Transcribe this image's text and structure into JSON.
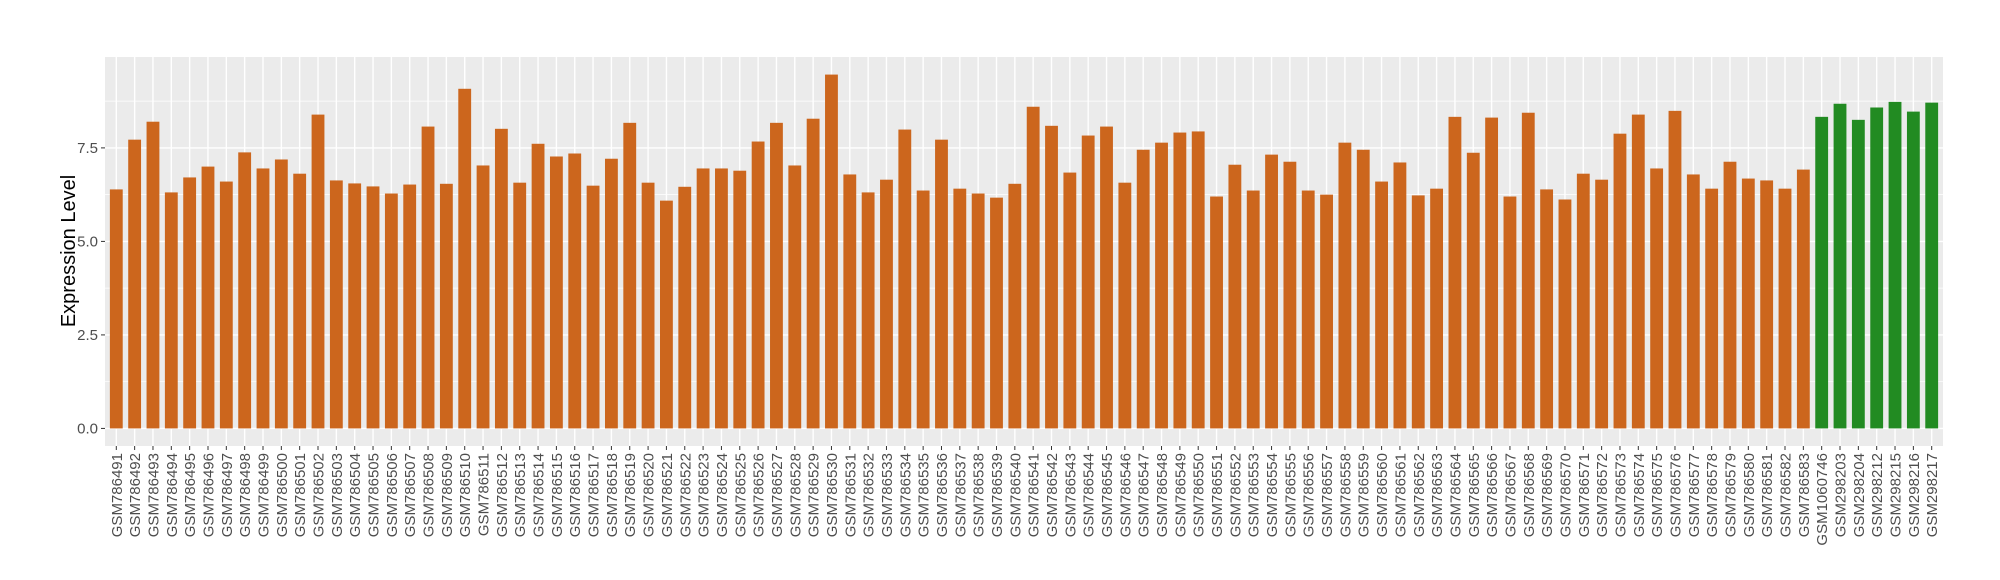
{
  "chart_data": {
    "type": "bar",
    "title": "",
    "xlabel": "",
    "ylabel": "Expression Level",
    "ylim": [
      -0.47,
      9.93
    ],
    "yticks": [
      "0.0",
      "2.5",
      "5.0",
      "7.5"
    ],
    "grid": true,
    "colors": {
      "group1": "#CC661D",
      "group2": "#228B22",
      "panel": "#EBEBEB",
      "grid": "#FFFFFF"
    },
    "categories": [
      "GSM786491",
      "GSM786492",
      "GSM786493",
      "GSM786494",
      "GSM786495",
      "GSM786496",
      "GSM786497",
      "GSM786498",
      "GSM786499",
      "GSM786500",
      "GSM786501",
      "GSM786502",
      "GSM786503",
      "GSM786504",
      "GSM786505",
      "GSM786506",
      "GSM786507",
      "GSM786508",
      "GSM786509",
      "GSM786510",
      "GSM786511",
      "GSM786512",
      "GSM786513",
      "GSM786514",
      "GSM786515",
      "GSM786516",
      "GSM786517",
      "GSM786518",
      "GSM786519",
      "GSM786520",
      "GSM786521",
      "GSM786522",
      "GSM786523",
      "GSM786524",
      "GSM786525",
      "GSM786526",
      "GSM786527",
      "GSM786528",
      "GSM786529",
      "GSM786530",
      "GSM786531",
      "GSM786532",
      "GSM786533",
      "GSM786534",
      "GSM786535",
      "GSM786536",
      "GSM786537",
      "GSM786538",
      "GSM786539",
      "GSM786540",
      "GSM786541",
      "GSM786542",
      "GSM786543",
      "GSM786544",
      "GSM786545",
      "GSM786546",
      "GSM786547",
      "GSM786548",
      "GSM786549",
      "GSM786550",
      "GSM786551",
      "GSM786552",
      "GSM786553",
      "GSM786554",
      "GSM786555",
      "GSM786556",
      "GSM786557",
      "GSM786558",
      "GSM786559",
      "GSM786560",
      "GSM786561",
      "GSM786562",
      "GSM786563",
      "GSM786564",
      "GSM786565",
      "GSM786566",
      "GSM786567",
      "GSM786568",
      "GSM786569",
      "GSM786570",
      "GSM786571",
      "GSM786572",
      "GSM786573",
      "GSM786574",
      "GSM786575",
      "GSM786576",
      "GSM786577",
      "GSM786578",
      "GSM786579",
      "GSM786580",
      "GSM786581",
      "GSM786582",
      "GSM786583",
      "GSM1060746",
      "GSM298203",
      "GSM298204",
      "GSM298212",
      "GSM298215",
      "GSM298216",
      "GSM298217"
    ],
    "values": [
      6.39,
      7.72,
      8.2,
      6.31,
      6.71,
      7.0,
      6.6,
      7.38,
      6.95,
      7.19,
      6.81,
      8.39,
      6.63,
      6.55,
      6.47,
      6.28,
      6.52,
      8.07,
      6.54,
      9.08,
      7.03,
      8.01,
      6.57,
      7.61,
      7.27,
      7.35,
      6.49,
      7.21,
      8.17,
      6.57,
      6.09,
      6.46,
      6.95,
      6.95,
      6.89,
      7.67,
      8.17,
      7.03,
      8.28,
      9.46,
      6.79,
      6.31,
      6.65,
      7.99,
      6.36,
      7.72,
      6.41,
      6.28,
      6.17,
      6.54,
      8.6,
      8.09,
      6.84,
      7.83,
      8.07,
      6.57,
      7.45,
      7.64,
      7.91,
      7.94,
      6.2,
      7.05,
      6.36,
      7.32,
      7.13,
      6.36,
      6.25,
      7.64,
      7.45,
      6.6,
      7.11,
      6.23,
      6.41,
      8.33,
      7.37,
      8.31,
      6.2,
      8.44,
      6.39,
      6.12,
      6.81,
      6.65,
      7.88,
      8.39,
      6.95,
      8.49,
      6.79,
      6.41,
      7.13,
      6.68,
      6.63,
      6.41,
      6.92,
      8.33,
      8.68,
      8.25,
      8.58,
      8.73,
      8.47,
      8.71
    ],
    "group": [
      "group1",
      "group1",
      "group1",
      "group1",
      "group1",
      "group1",
      "group1",
      "group1",
      "group1",
      "group1",
      "group1",
      "group1",
      "group1",
      "group1",
      "group1",
      "group1",
      "group1",
      "group1",
      "group1",
      "group1",
      "group1",
      "group1",
      "group1",
      "group1",
      "group1",
      "group1",
      "group1",
      "group1",
      "group1",
      "group1",
      "group1",
      "group1",
      "group1",
      "group1",
      "group1",
      "group1",
      "group1",
      "group1",
      "group1",
      "group1",
      "group1",
      "group1",
      "group1",
      "group1",
      "group1",
      "group1",
      "group1",
      "group1",
      "group1",
      "group1",
      "group1",
      "group1",
      "group1",
      "group1",
      "group1",
      "group1",
      "group1",
      "group1",
      "group1",
      "group1",
      "group1",
      "group1",
      "group1",
      "group1",
      "group1",
      "group1",
      "group1",
      "group1",
      "group1",
      "group1",
      "group1",
      "group1",
      "group1",
      "group1",
      "group1",
      "group1",
      "group1",
      "group1",
      "group1",
      "group1",
      "group1",
      "group1",
      "group1",
      "group1",
      "group1",
      "group1",
      "group1",
      "group1",
      "group1",
      "group1",
      "group1",
      "group1",
      "group1",
      "group2",
      "group2",
      "group2",
      "group2",
      "group2",
      "group2",
      "group2"
    ]
  }
}
